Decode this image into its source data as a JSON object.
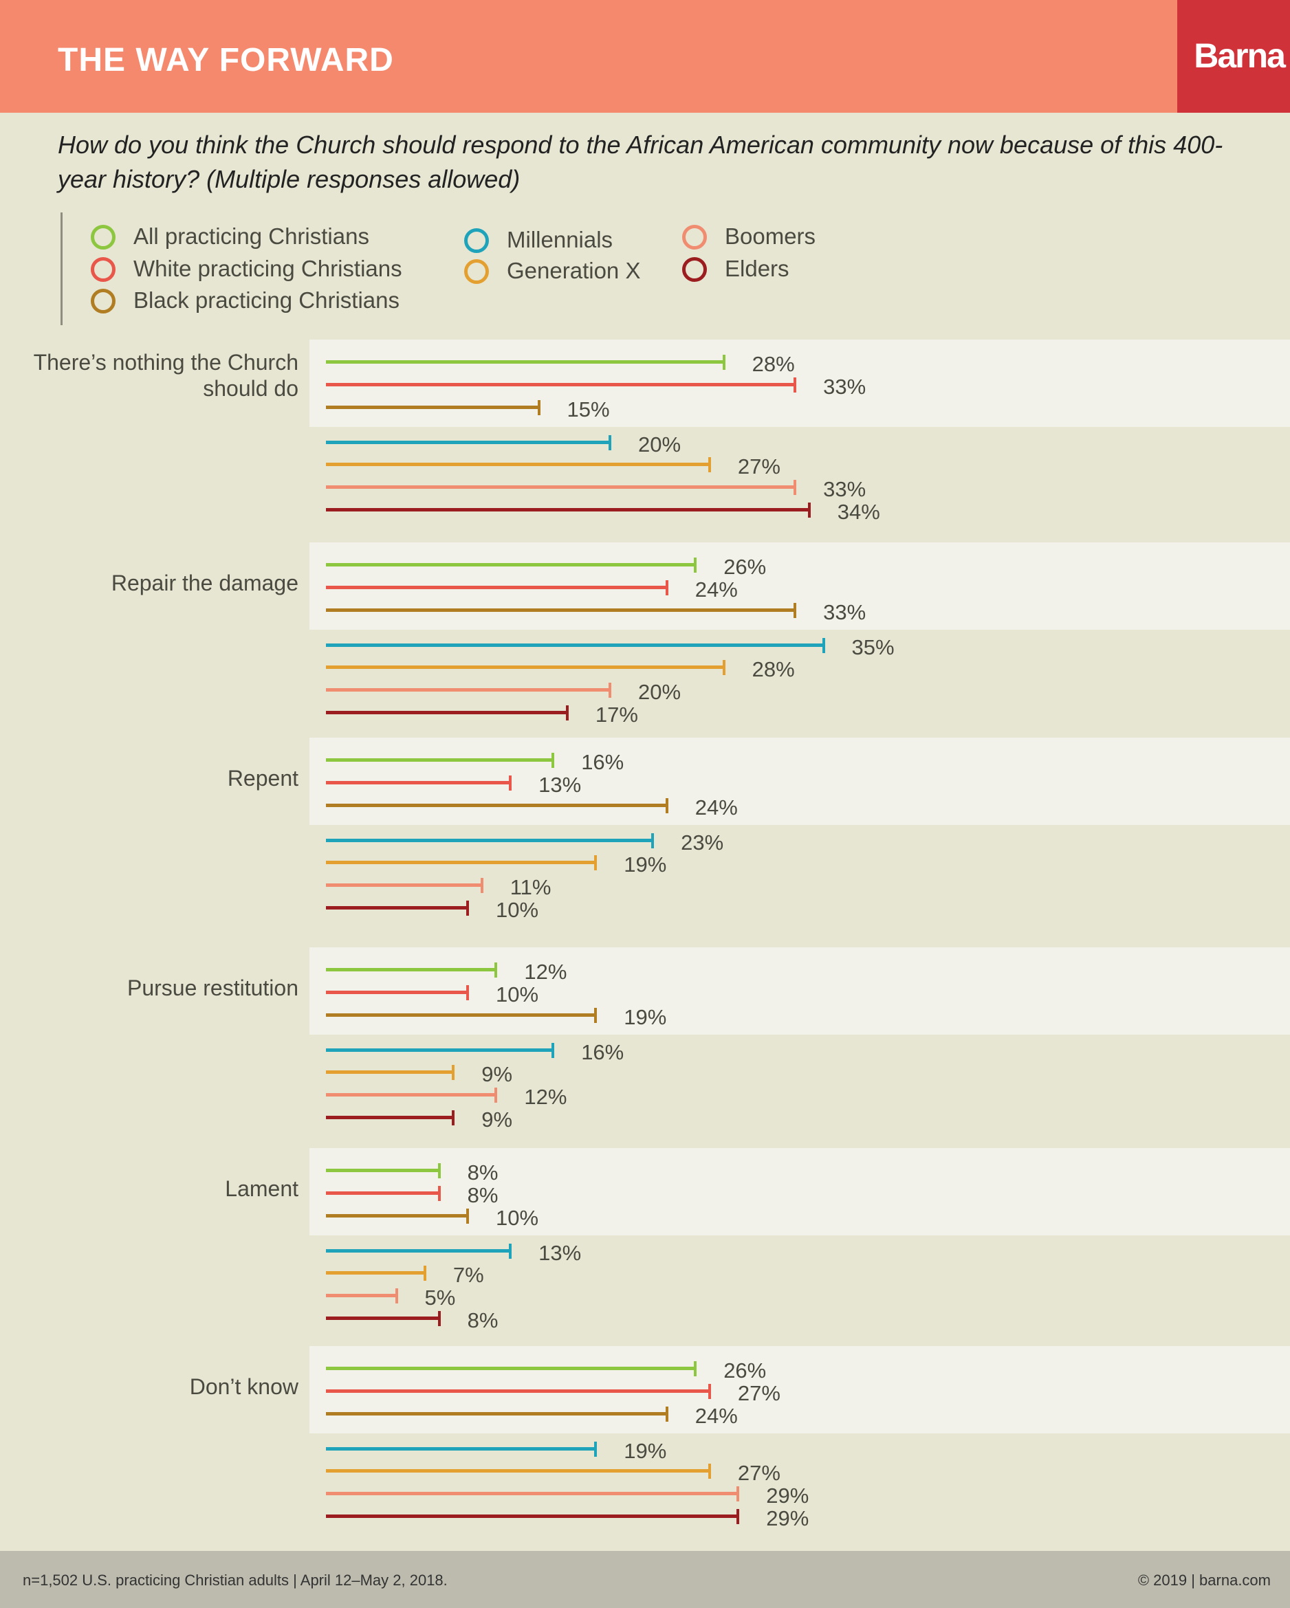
{
  "header": {
    "title": "THE WAY FORWARD",
    "logo": "Barna"
  },
  "question": "How do you think the Church should respond to the African American community now because of this 400-year history? (Multiple responses allowed)",
  "chart_data": {
    "type": "bar",
    "orientation": "horizontal",
    "xlim": [
      0,
      35
    ],
    "grid": false,
    "legend_position": "top",
    "series": [
      {
        "name": "All practicing Christians",
        "color": "#8dc63f",
        "values": [
          28,
          26,
          16,
          12,
          8,
          26
        ]
      },
      {
        "name": "White practicing Christians",
        "color": "#e8574a",
        "values": [
          33,
          24,
          13,
          10,
          8,
          27
        ]
      },
      {
        "name": "Black practicing Christians",
        "color": "#b07d22",
        "values": [
          15,
          33,
          24,
          19,
          10,
          24
        ]
      },
      {
        "name": "Millennials",
        "color": "#1ea3bb",
        "values": [
          20,
          35,
          23,
          16,
          13,
          19
        ]
      },
      {
        "name": "Generation X",
        "color": "#e3a030",
        "values": [
          27,
          28,
          19,
          9,
          7,
          27
        ]
      },
      {
        "name": "Boomers",
        "color": "#f08c70",
        "values": [
          33,
          20,
          11,
          12,
          5,
          29
        ]
      },
      {
        "name": "Elders",
        "color": "#9b1d20",
        "values": [
          34,
          17,
          10,
          9,
          8,
          29
        ]
      }
    ],
    "categories": [
      "There’s nothing the Church should do",
      "Repair the damage",
      "Repent",
      "Pursue restitution",
      "Lament",
      "Don’t know"
    ],
    "value_suffix": "%"
  },
  "footer": {
    "source": "n=1,502 U.S. practicing Christian adults | April 12–May 2, 2018.",
    "copyright": "© 2019 | barna.com"
  }
}
